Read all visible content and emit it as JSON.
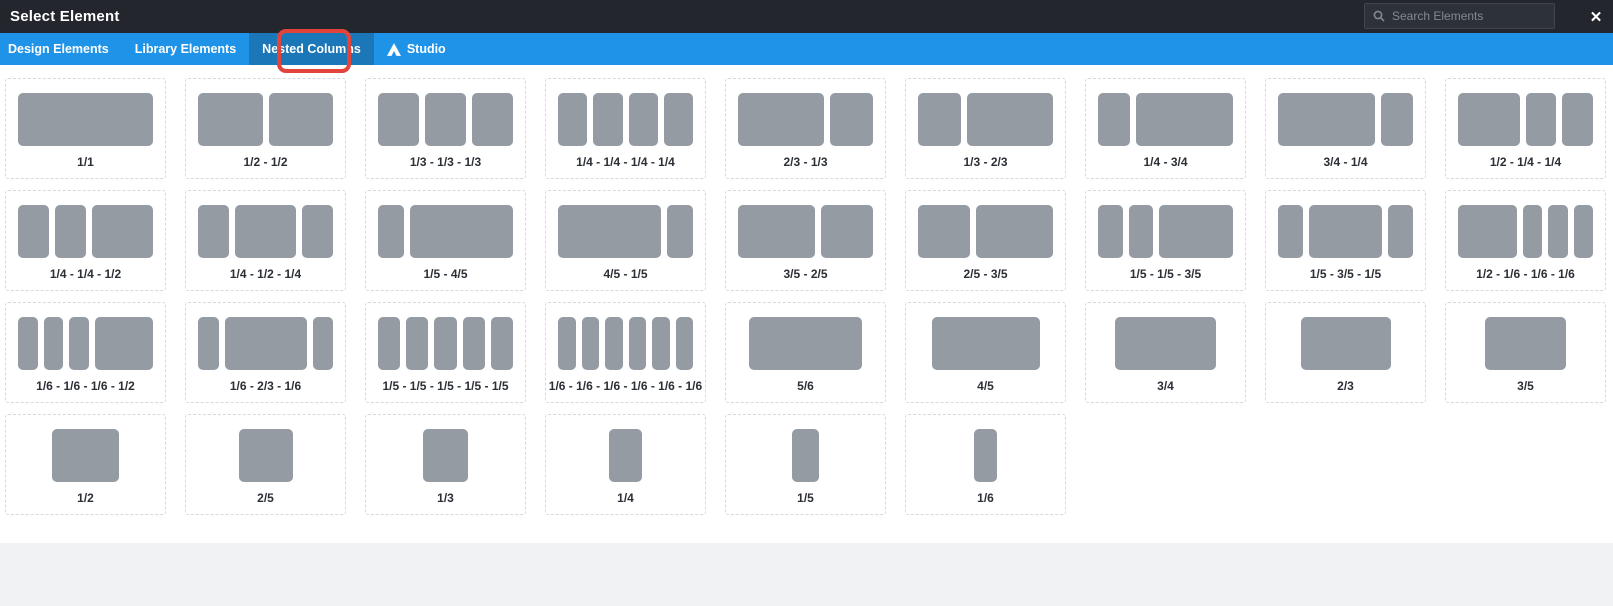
{
  "header": {
    "title": "Select Element",
    "close_glyph": "✕"
  },
  "search": {
    "placeholder": "Search Elements",
    "value": ""
  },
  "tabs": [
    {
      "label": "Design Elements",
      "active": false,
      "icon": null
    },
    {
      "label": "Library Elements",
      "active": false,
      "icon": null
    },
    {
      "label": "Nested Columns",
      "active": true,
      "icon": null
    },
    {
      "label": "Studio",
      "active": false,
      "icon": "avada-logo"
    }
  ],
  "annotation": {
    "shape": "rounded-rectangle",
    "color": "#e2433a",
    "highlights": "Columns"
  },
  "colors": {
    "header_bg": "#23262d",
    "tab_bar_bg": "#1f93e8",
    "active_tab_bg": "#1b77b7",
    "column_box": "#949ba3",
    "card_border": "#d6d9dc"
  },
  "layouts": [
    {
      "label": "1/1",
      "columns": [
        "1/1"
      ]
    },
    {
      "label": "1/2 - 1/2",
      "columns": [
        "1/2",
        "1/2"
      ]
    },
    {
      "label": "1/3 - 1/3 - 1/3",
      "columns": [
        "1/3",
        "1/3",
        "1/3"
      ]
    },
    {
      "label": "1/4 - 1/4 - 1/4 - 1/4",
      "columns": [
        "1/4",
        "1/4",
        "1/4",
        "1/4"
      ]
    },
    {
      "label": "2/3 - 1/3",
      "columns": [
        "2/3",
        "1/3"
      ]
    },
    {
      "label": "1/3 - 2/3",
      "columns": [
        "1/3",
        "2/3"
      ]
    },
    {
      "label": "1/4 - 3/4",
      "columns": [
        "1/4",
        "3/4"
      ]
    },
    {
      "label": "3/4 - 1/4",
      "columns": [
        "3/4",
        "1/4"
      ]
    },
    {
      "label": "1/2 - 1/4 - 1/4",
      "columns": [
        "1/2",
        "1/4",
        "1/4"
      ]
    },
    {
      "label": "1/4 - 1/4 - 1/2",
      "columns": [
        "1/4",
        "1/4",
        "1/2"
      ]
    },
    {
      "label": "1/4 - 1/2 - 1/4",
      "columns": [
        "1/4",
        "1/2",
        "1/4"
      ]
    },
    {
      "label": "1/5 - 4/5",
      "columns": [
        "1/5",
        "4/5"
      ]
    },
    {
      "label": "4/5 - 1/5",
      "columns": [
        "4/5",
        "1/5"
      ]
    },
    {
      "label": "3/5 - 2/5",
      "columns": [
        "3/5",
        "2/5"
      ]
    },
    {
      "label": "2/5 - 3/5",
      "columns": [
        "2/5",
        "3/5"
      ]
    },
    {
      "label": "1/5 - 1/5 - 3/5",
      "columns": [
        "1/5",
        "1/5",
        "3/5"
      ]
    },
    {
      "label": "1/5 - 3/5 - 1/5",
      "columns": [
        "1/5",
        "3/5",
        "1/5"
      ]
    },
    {
      "label": "1/2 - 1/6 - 1/6 - 1/6",
      "columns": [
        "1/2",
        "1/6",
        "1/6",
        "1/6"
      ]
    },
    {
      "label": "1/6 - 1/6 - 1/6 - 1/2",
      "columns": [
        "1/6",
        "1/6",
        "1/6",
        "1/2"
      ]
    },
    {
      "label": "1/6 - 2/3 - 1/6",
      "columns": [
        "1/6",
        "2/3",
        "1/6"
      ]
    },
    {
      "label": "1/5 - 1/5 - 1/5 - 1/5 - 1/5",
      "columns": [
        "1/5",
        "1/5",
        "1/5",
        "1/5",
        "1/5"
      ]
    },
    {
      "label": "1/6 - 1/6 - 1/6 - 1/6 - 1/6 - 1/6",
      "columns": [
        "1/6",
        "1/6",
        "1/6",
        "1/6",
        "1/6",
        "1/6"
      ]
    },
    {
      "label": "5/6",
      "columns": [
        "5/6"
      ]
    },
    {
      "label": "4/5",
      "columns": [
        "4/5"
      ]
    },
    {
      "label": "3/4",
      "columns": [
        "3/4"
      ]
    },
    {
      "label": "2/3",
      "columns": [
        "2/3"
      ]
    },
    {
      "label": "3/5",
      "columns": [
        "3/5"
      ]
    },
    {
      "label": "1/2",
      "columns": [
        "1/2"
      ]
    },
    {
      "label": "2/5",
      "columns": [
        "2/5"
      ]
    },
    {
      "label": "1/3",
      "columns": [
        "1/3"
      ]
    },
    {
      "label": "1/4",
      "columns": [
        "1/4"
      ]
    },
    {
      "label": "1/5",
      "columns": [
        "1/5"
      ]
    },
    {
      "label": "1/6",
      "columns": [
        "1/6"
      ]
    }
  ]
}
